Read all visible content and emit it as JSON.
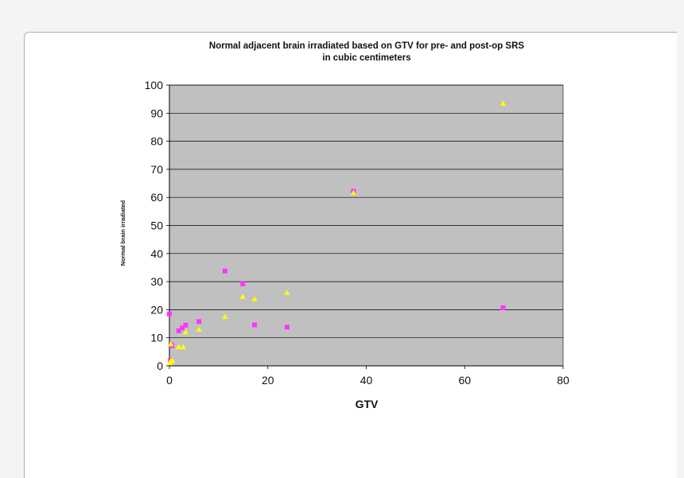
{
  "chart_data": {
    "type": "scatter",
    "title_lines": [
      "Normal adjacent brain irradiated based on GTV for pre- and post-op SRS",
      "in cubic centimeters"
    ],
    "xlabel": "GTV",
    "ylabel": "Normal brain irradiated",
    "xlim": [
      0,
      80
    ],
    "ylim": [
      0,
      100
    ],
    "x_ticks": [
      "0",
      "20",
      "40",
      "60",
      "80"
    ],
    "y_ticks": [
      "0",
      "10",
      "20",
      "30",
      "40",
      "50",
      "60",
      "70",
      "80",
      "90",
      "100"
    ],
    "grid": true,
    "plot_background": "#c0c0c0",
    "series": [
      {
        "marker": "square",
        "color": "#ff33ff",
        "points": [
          {
            "x": 0.0,
            "y": 18.5
          },
          {
            "x": 0.3,
            "y": 7.5
          },
          {
            "x": 0.5,
            "y": 7.2
          },
          {
            "x": 0.2,
            "y": 2.0
          },
          {
            "x": 1.9,
            "y": 12.5
          },
          {
            "x": 2.6,
            "y": 13.5
          },
          {
            "x": 3.3,
            "y": 14.5
          },
          {
            "x": 6.0,
            "y": 15.8
          },
          {
            "x": 11.3,
            "y": 33.8
          },
          {
            "x": 14.9,
            "y": 29.2
          },
          {
            "x": 17.3,
            "y": 14.6
          },
          {
            "x": 23.9,
            "y": 13.8
          },
          {
            "x": 37.4,
            "y": 62.2
          },
          {
            "x": 67.8,
            "y": 20.7
          }
        ]
      },
      {
        "marker": "triangle",
        "color": "#ffff00",
        "points": [
          {
            "x": 0.0,
            "y": 1.0
          },
          {
            "x": 0.2,
            "y": 1.5
          },
          {
            "x": 0.4,
            "y": 1.8
          },
          {
            "x": 0.6,
            "y": 2.0
          },
          {
            "x": 0.3,
            "y": 7.8
          },
          {
            "x": 1.9,
            "y": 6.8
          },
          {
            "x": 2.8,
            "y": 6.8
          },
          {
            "x": 3.3,
            "y": 12.0
          },
          {
            "x": 6.0,
            "y": 13.0
          },
          {
            "x": 11.3,
            "y": 17.5
          },
          {
            "x": 14.9,
            "y": 24.7
          },
          {
            "x": 17.3,
            "y": 23.8
          },
          {
            "x": 23.9,
            "y": 26.1
          },
          {
            "x": 37.4,
            "y": 61.7
          },
          {
            "x": 67.8,
            "y": 93.5
          }
        ]
      }
    ]
  }
}
